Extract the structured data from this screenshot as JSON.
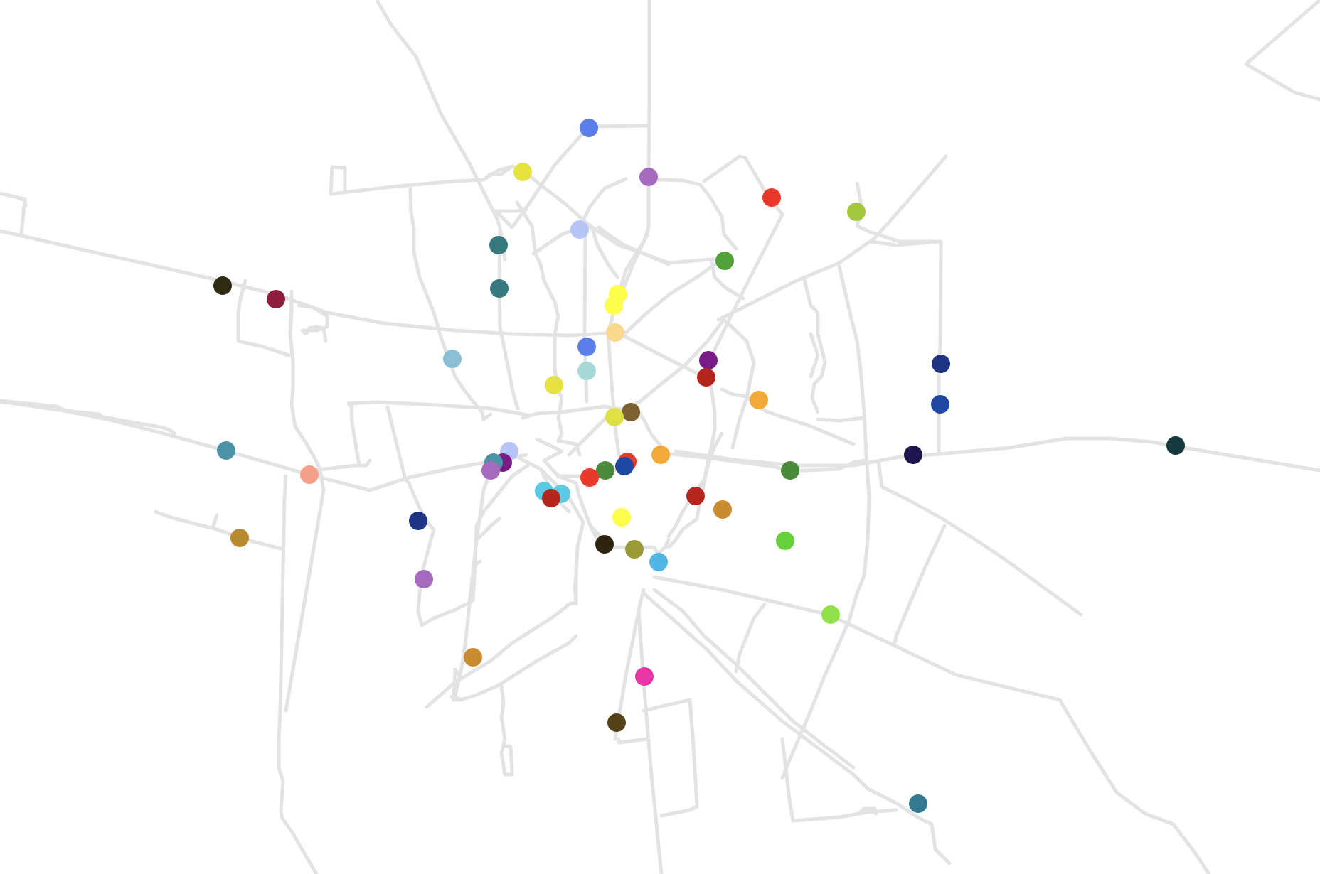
{
  "map": {
    "style": "road-network with colored stop markers",
    "road_color": "#e3e3e3",
    "background": "#ffffff"
  },
  "stops": [
    {
      "id": "s01",
      "color": "#5b7ee8"
    },
    {
      "id": "s02",
      "color": "#e6e23f"
    },
    {
      "id": "s03",
      "color": "#a66bbf"
    },
    {
      "id": "s04",
      "color": "#e8392c"
    },
    {
      "id": "s05",
      "color": "#a4c83b"
    },
    {
      "id": "s06",
      "color": "#b7c4f6"
    },
    {
      "id": "s07",
      "color": "#367a80"
    },
    {
      "id": "s08",
      "color": "#52a23b"
    },
    {
      "id": "s09",
      "color": "#367a80"
    },
    {
      "id": "s10",
      "color": "#2f2a12"
    },
    {
      "id": "s11",
      "color": "#8c1d3c"
    },
    {
      "id": "s12",
      "color": "#fdfd4c"
    },
    {
      "id": "s13",
      "color": "#fdfd4c"
    },
    {
      "id": "s14",
      "color": "#f8d98e"
    },
    {
      "id": "s15",
      "color": "#5b7ee8"
    },
    {
      "id": "s16",
      "color": "#8abfd6"
    },
    {
      "id": "s17",
      "color": "#a8d8d6"
    },
    {
      "id": "s18",
      "color": "#7a1c87"
    },
    {
      "id": "s19",
      "color": "#b5261e"
    },
    {
      "id": "s20",
      "color": "#e6e23f"
    },
    {
      "id": "s21",
      "color": "#1e3483"
    },
    {
      "id": "s22",
      "color": "#f3a93a"
    },
    {
      "id": "s23",
      "color": "#7b6230"
    },
    {
      "id": "s24",
      "color": "#dfe042"
    },
    {
      "id": "s25",
      "color": "#2048a3"
    },
    {
      "id": "s26",
      "color": "#4d93a8"
    },
    {
      "id": "s27",
      "color": "#b7c4f6"
    },
    {
      "id": "s28",
      "color": "#7a1c87"
    },
    {
      "id": "s29",
      "color": "#4d93a8"
    },
    {
      "id": "s30",
      "color": "#a66bbf"
    },
    {
      "id": "s31",
      "color": "#f4a18c"
    },
    {
      "id": "s32",
      "color": "#f3a93a"
    },
    {
      "id": "s33",
      "color": "#e8392c"
    },
    {
      "id": "s34",
      "color": "#4a8a3a"
    },
    {
      "id": "s35",
      "color": "#2048a3"
    },
    {
      "id": "s36",
      "color": "#e8392c"
    },
    {
      "id": "s37",
      "color": "#4a8a3a"
    },
    {
      "id": "s38",
      "color": "#1f1650"
    },
    {
      "id": "s39",
      "color": "#16393f"
    },
    {
      "id": "s40",
      "color": "#b5261e"
    },
    {
      "id": "s41",
      "color": "#5bcbe5"
    },
    {
      "id": "s42",
      "color": "#5bcbe5"
    },
    {
      "id": "s43",
      "color": "#b5261e"
    },
    {
      "id": "s44",
      "color": "#c98b30"
    },
    {
      "id": "s45",
      "color": "#fdfd4c"
    },
    {
      "id": "s46",
      "color": "#1e3483"
    },
    {
      "id": "s47",
      "color": "#b88a2e"
    },
    {
      "id": "s48",
      "color": "#66d13d"
    },
    {
      "id": "s49",
      "color": "#2f2410"
    },
    {
      "id": "s50",
      "color": "#9a9a36"
    },
    {
      "id": "s51",
      "color": "#52b6e5"
    },
    {
      "id": "s52",
      "color": "#a66bbf"
    },
    {
      "id": "s53",
      "color": "#92e04a"
    },
    {
      "id": "s54",
      "color": "#c98b30"
    },
    {
      "id": "s55",
      "color": "#e836a6"
    },
    {
      "id": "s56",
      "color": "#544219"
    },
    {
      "id": "s57",
      "color": "#367a92"
    }
  ]
}
